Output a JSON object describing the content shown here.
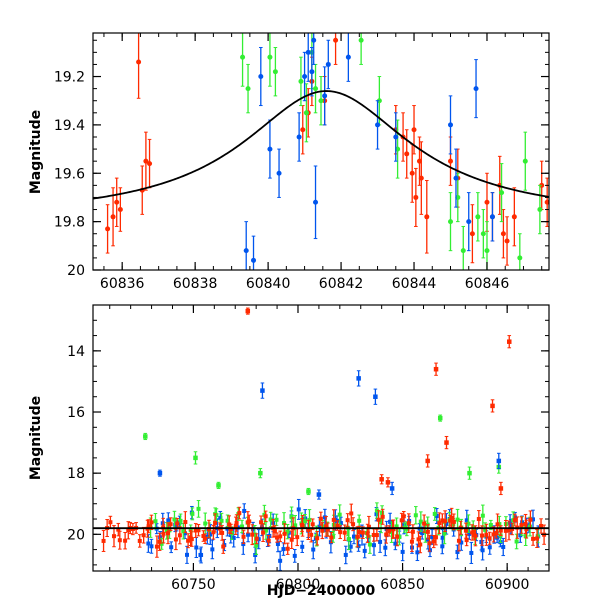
{
  "chart_data": [
    {
      "type": "scatter",
      "title": "",
      "xlabel": "",
      "ylabel": "Magnitude",
      "xlim": [
        60835.2,
        60847.7
      ],
      "ylim": [
        20.0,
        19.02
      ],
      "y_inverted": true,
      "grid": false,
      "x_ticks": [
        60836,
        60838,
        60840,
        60842,
        60844,
        60846
      ],
      "y_ticks": [
        19.2,
        19.4,
        19.6,
        19.8,
        20
      ],
      "colors": {
        "red": "#ff2a00",
        "green": "#33ee33",
        "blue": "#0055ee",
        "model": "#000000"
      },
      "model_curve": {
        "peak_time": 60841.6,
        "peak_mag": 19.26,
        "baseline_mag": 19.79,
        "width_days": 2.8
      },
      "series": [
        {
          "color": "red",
          "points": [
            [
              60835.6,
              19.83,
              0.1
            ],
            [
              60835.75,
              19.78,
              0.12
            ],
            [
              60835.85,
              19.72,
              0.1
            ],
            [
              60835.95,
              19.75,
              0.09
            ],
            [
              60836.45,
              19.14,
              0.15
            ],
            [
              60836.55,
              19.67,
              0.1
            ],
            [
              60836.65,
              19.55,
              0.12
            ],
            [
              60836.75,
              19.56,
              0.1
            ],
            [
              60840.95,
              19.42,
              0.1
            ],
            [
              60841.1,
              19.35,
              0.1
            ],
            [
              60841.2,
              19.22,
              0.1
            ],
            [
              60841.55,
              19.3,
              0.1
            ],
            [
              60841.85,
              19.05,
              0.1
            ],
            [
              60843.5,
              19.42,
              0.1
            ],
            [
              60843.7,
              19.45,
              0.1
            ],
            [
              60843.8,
              19.52,
              0.1
            ],
            [
              60843.95,
              19.6,
              0.12
            ],
            [
              60844.0,
              19.42,
              0.1
            ],
            [
              60844.05,
              19.7,
              0.12
            ],
            [
              60844.15,
              19.55,
              0.1
            ],
            [
              60844.2,
              19.62,
              0.15
            ],
            [
              60844.35,
              19.78,
              0.15
            ],
            [
              60845.0,
              19.55,
              0.1
            ],
            [
              60845.2,
              19.62,
              0.12
            ],
            [
              60845.6,
              19.85,
              0.12
            ],
            [
              60846.0,
              19.72,
              0.12
            ],
            [
              60846.15,
              19.78,
              0.1
            ],
            [
              60846.35,
              19.65,
              0.12
            ],
            [
              60846.45,
              19.85,
              0.1
            ],
            [
              60846.55,
              19.88,
              0.1
            ],
            [
              60846.75,
              19.78,
              0.12
            ],
            [
              60847.5,
              19.65,
              0.1
            ],
            [
              60847.65,
              19.72,
              0.1
            ]
          ]
        },
        {
          "color": "green",
          "points": [
            [
              60839.3,
              19.12,
              0.12
            ],
            [
              60839.45,
              19.25,
              0.1
            ],
            [
              60840.05,
              19.12,
              0.12
            ],
            [
              60840.2,
              19.18,
              0.1
            ],
            [
              60840.9,
              19.22,
              0.1
            ],
            [
              60841.05,
              19.35,
              0.12
            ],
            [
              60841.2,
              19.1,
              0.15
            ],
            [
              60841.3,
              19.25,
              0.1
            ],
            [
              60841.45,
              19.3,
              0.1
            ],
            [
              60842.55,
              19.05,
              0.1
            ],
            [
              60843.05,
              19.3,
              0.1
            ],
            [
              60843.55,
              19.5,
              0.12
            ],
            [
              60845.0,
              19.8,
              0.12
            ],
            [
              60845.2,
              19.7,
              0.1
            ],
            [
              60845.35,
              19.92,
              0.1
            ],
            [
              60845.75,
              19.78,
              0.1
            ],
            [
              60845.9,
              19.85,
              0.1
            ],
            [
              60846.0,
              19.92,
              0.12
            ],
            [
              60846.4,
              19.68,
              0.12
            ],
            [
              60846.9,
              19.95,
              0.1
            ],
            [
              60847.05,
              19.55,
              0.12
            ],
            [
              60847.45,
              19.75,
              0.1
            ]
          ]
        },
        {
          "color": "blue",
          "points": [
            [
              60839.4,
              19.92,
              0.12
            ],
            [
              60839.6,
              19.96,
              0.1
            ],
            [
              60839.8,
              19.2,
              0.12
            ],
            [
              60840.05,
              19.5,
              0.12
            ],
            [
              60840.3,
              19.6,
              0.1
            ],
            [
              60840.85,
              19.45,
              0.1
            ],
            [
              60841.0,
              19.2,
              0.1
            ],
            [
              60841.1,
              19.1,
              0.12
            ],
            [
              60841.2,
              19.18,
              0.1
            ],
            [
              60841.25,
              19.05,
              0.1
            ],
            [
              60841.3,
              19.72,
              0.15
            ],
            [
              60841.55,
              19.28,
              0.12
            ],
            [
              60841.65,
              19.15,
              0.1
            ],
            [
              60842.2,
              19.12,
              0.1
            ],
            [
              60843.0,
              19.4,
              0.1
            ],
            [
              60843.5,
              19.45,
              0.1
            ],
            [
              60845.0,
              19.4,
              0.12
            ],
            [
              60845.15,
              19.62,
              0.12
            ],
            [
              60845.5,
              19.8,
              0.12
            ],
            [
              60845.7,
              19.25,
              0.12
            ],
            [
              60846.15,
              19.78,
              0.1
            ]
          ]
        }
      ]
    },
    {
      "type": "scatter",
      "title": "",
      "xlabel": "HJD−2400000",
      "ylabel": "Magnitude",
      "xlim": [
        60702.0,
        60920.0
      ],
      "ylim": [
        21.2,
        12.5
      ],
      "y_inverted": true,
      "grid": false,
      "x_ticks": [
        60750,
        60800,
        60850,
        60900
      ],
      "y_ticks": [
        14,
        16,
        18,
        20
      ],
      "colors": {
        "red": "#ff2a00",
        "green": "#33ee33",
        "blue": "#0055ee",
        "model": "#000000"
      },
      "model_curve": {
        "baseline_mag": 19.8
      },
      "baseline_scatter": {
        "red": {
          "x_range": [
            60707,
            60918
          ],
          "center": 19.85,
          "spread": 0.35,
          "count": 140
        },
        "blue": {
          "x_range": [
            60728,
            60915
          ],
          "center": 20.05,
          "spread": 0.6,
          "count": 110
        },
        "green": {
          "x_range": [
            60728,
            60915
          ],
          "center": 19.75,
          "spread": 0.4,
          "count": 80
        }
      },
      "series": [
        {
          "color": "red",
          "points": [
            [
              60776,
              12.7,
              0.1
            ],
            [
              60840,
              18.2,
              0.15
            ],
            [
              60843,
              18.3,
              0.15
            ],
            [
              60862,
              17.6,
              0.2
            ],
            [
              60866,
              14.6,
              0.2
            ],
            [
              60871,
              17.0,
              0.2
            ],
            [
              60893,
              15.8,
              0.2
            ],
            [
              60897,
              18.5,
              0.2
            ],
            [
              60901,
              13.7,
              0.2
            ]
          ]
        },
        {
          "color": "green",
          "points": [
            [
              60727,
              16.8,
              0.1
            ],
            [
              60751,
              17.5,
              0.2
            ],
            [
              60762,
              18.4,
              0.1
            ],
            [
              60782,
              18.0,
              0.15
            ],
            [
              60805,
              18.6,
              0.1
            ],
            [
              60868,
              16.2,
              0.1
            ],
            [
              60882,
              18.0,
              0.2
            ],
            [
              60896,
              17.8,
              0.2
            ]
          ]
        },
        {
          "color": "blue",
          "points": [
            [
              60734,
              18.0,
              0.1
            ],
            [
              60783,
              15.3,
              0.25
            ],
            [
              60829,
              14.9,
              0.25
            ],
            [
              60837,
              15.5,
              0.25
            ],
            [
              60810,
              18.7,
              0.15
            ],
            [
              60845,
              18.5,
              0.2
            ],
            [
              60896,
              17.6,
              0.25
            ]
          ]
        }
      ]
    }
  ]
}
